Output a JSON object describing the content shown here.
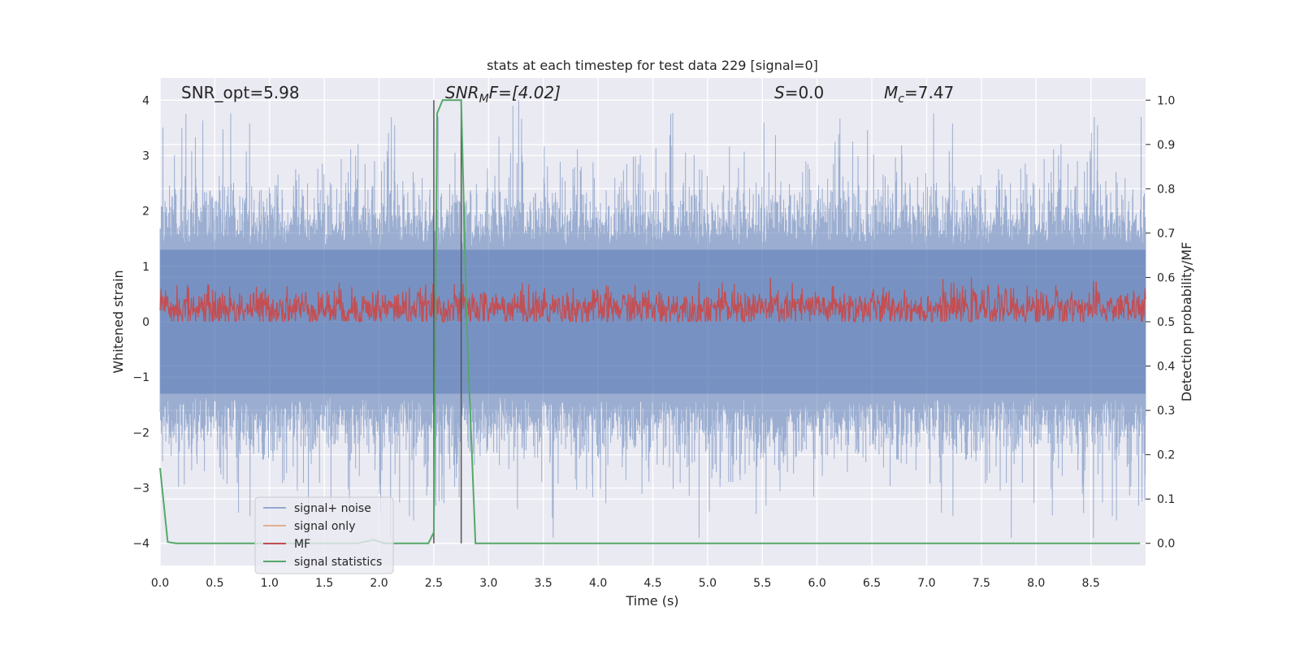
{
  "chart_data": {
    "type": "line",
    "title": "stats at each timestep for test data 229 [signal=0]",
    "xlabel": "Time (s)",
    "ylabel_left": "Whitened strain",
    "ylabel_right": "Detection probability/MF",
    "xlim": [
      0.0,
      9.0
    ],
    "ylim_left": [
      -4.4,
      4.4
    ],
    "ylim_right": [
      -0.05,
      1.05
    ],
    "xticks": [
      "0.0",
      "0.5",
      "1.0",
      "1.5",
      "2.0",
      "2.5",
      "3.0",
      "3.5",
      "4.0",
      "4.5",
      "5.0",
      "5.5",
      "6.0",
      "6.5",
      "7.0",
      "7.5",
      "8.0",
      "8.5"
    ],
    "yticks_left": [
      "−4",
      "−3",
      "−2",
      "−1",
      "0",
      "1",
      "2",
      "3",
      "4"
    ],
    "yticks_right": [
      "0.0",
      "0.1",
      "0.2",
      "0.3",
      "0.4",
      "0.5",
      "0.6",
      "0.7",
      "0.8",
      "0.9",
      "1.0"
    ],
    "grid": true,
    "legend_placement": "lower-left",
    "annotations": {
      "snr_opt": "SNR_opt=5.98",
      "snr_mf_name": "SNR",
      "snr_mf_sub": "M",
      "snr_mf_rest": "F=[4.02]",
      "s_name": "S",
      "s_rest": "=0.0",
      "mc_name": "M",
      "mc_sub": "c",
      "mc_rest": "=7.47"
    },
    "vertical_lines_x": [
      2.5,
      2.75
    ],
    "series": [
      {
        "name": "signal+ noise",
        "color": "#4c72b0",
        "axis": "left",
        "description_amplitude_typical": [
          -1.6,
          1.6
        ],
        "max": 4.0,
        "min": -3.9
      },
      {
        "name": "signal only",
        "color": "#dd8452",
        "axis": "left"
      },
      {
        "name": "MF",
        "color": "#c44e52",
        "axis": "right",
        "range": [
          0.5,
          0.6
        ]
      },
      {
        "name": "signal statistics",
        "color": "#55a868",
        "axis": "right",
        "x": [
          0.0,
          0.07,
          0.15,
          0.5,
          1.0,
          1.5,
          1.8,
          1.95,
          2.05,
          2.3,
          2.45,
          2.5,
          2.53,
          2.58,
          2.65,
          2.75,
          2.8,
          2.88,
          3.0,
          4.0,
          5.0,
          6.0,
          7.0,
          8.0,
          8.95
        ],
        "y": [
          0.17,
          0.003,
          0.0,
          0.0,
          0.0,
          0.0,
          0.0,
          0.008,
          0.0,
          0.0,
          0.0,
          0.025,
          0.97,
          1.0,
          1.0,
          1.0,
          0.5,
          0.0,
          0.0,
          0.0,
          0.0,
          0.0,
          0.0,
          0.0,
          0.0
        ]
      }
    ]
  }
}
